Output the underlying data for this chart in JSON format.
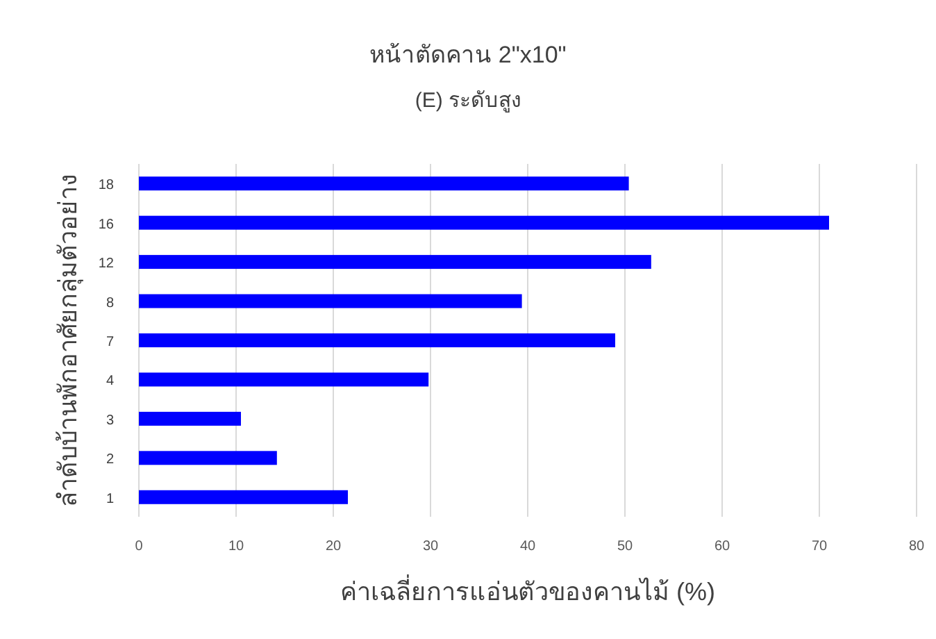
{
  "chart_data": {
    "type": "bar",
    "orientation": "horizontal",
    "title": "หน้าตัดคาน 2\"x10\"",
    "subtitle": "(E) ระดับสูง",
    "xlabel": "ค่าเฉลี่ยการแอ่นตัวของคานไม้ (%)",
    "ylabel": "ลำดับบ้านพักอาศัยกลุ่มตัวอย่าง",
    "categories": [
      "18",
      "16",
      "12",
      "8",
      "7",
      "4",
      "3",
      "2",
      "1"
    ],
    "values": [
      50.4,
      71,
      52.7,
      39.4,
      49,
      29.8,
      10.5,
      14.2,
      21.5
    ],
    "color": "#0000ff",
    "xlim": [
      0,
      80
    ],
    "xticks": [
      0,
      10,
      20,
      30,
      40,
      50,
      60,
      70,
      80
    ],
    "grid": "x"
  }
}
